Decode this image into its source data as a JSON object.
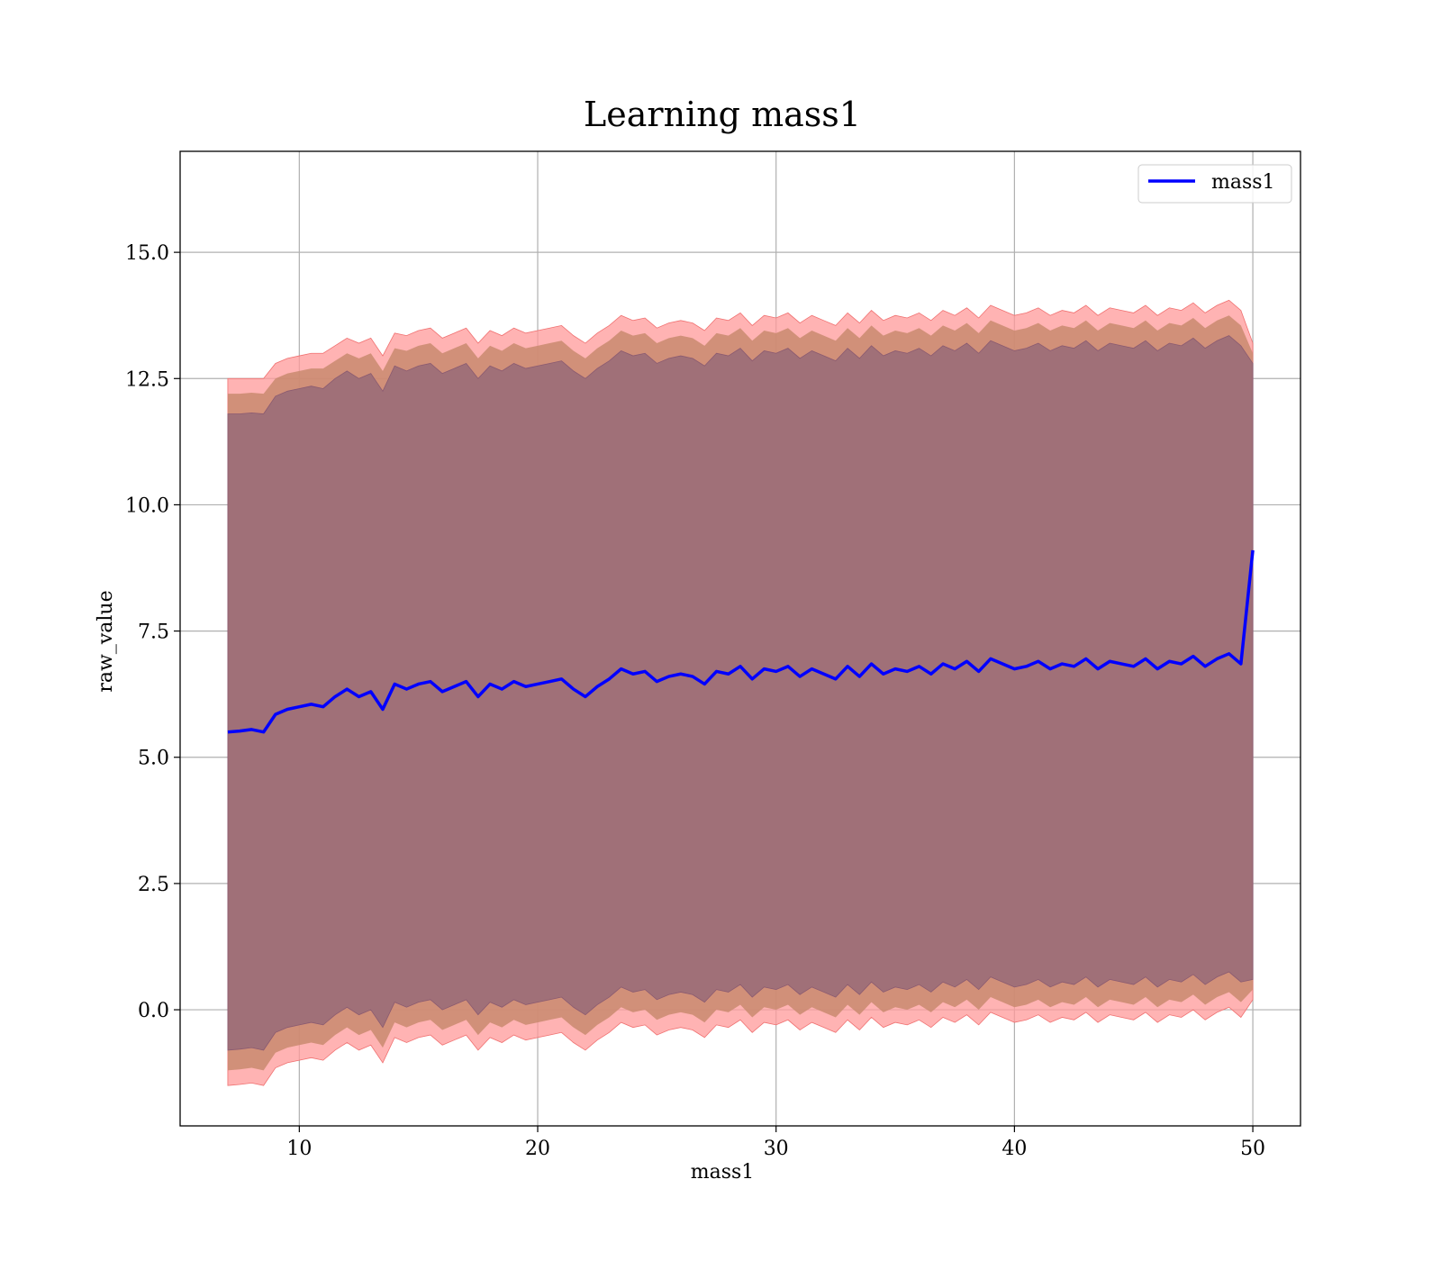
{
  "chart_data": {
    "type": "line",
    "title": "Learning mass1",
    "xlabel": "mass1",
    "ylabel": "raw_value",
    "xlim": [
      5,
      52
    ],
    "ylim": [
      -2.3,
      17
    ],
    "xticks": [
      10,
      20,
      30,
      40,
      50
    ],
    "xtick_labels": [
      "10",
      "20",
      "30",
      "40",
      "50"
    ],
    "yticks": [
      0.0,
      2.5,
      5.0,
      7.5,
      10.0,
      12.5,
      15.0
    ],
    "ytick_labels": [
      "0.0",
      "2.5",
      "5.0",
      "7.5",
      "10.0",
      "12.5",
      "15.0"
    ],
    "grid": true,
    "legend": {
      "position": "top-right",
      "entries": [
        "mass1"
      ]
    },
    "colors": {
      "line": "#0000ff",
      "band_outer": "#ff9a9a",
      "band_middle": "#c98a6e",
      "band_inner": "#a07078"
    },
    "series": [
      {
        "name": "mass1",
        "x": [
          7.0,
          7.5,
          8.0,
          8.5,
          9.0,
          9.5,
          10.0,
          10.5,
          11.0,
          11.5,
          12.0,
          12.5,
          13.0,
          13.5,
          14.0,
          14.5,
          15.0,
          15.5,
          16.0,
          16.5,
          17.0,
          17.5,
          18.0,
          18.5,
          19.0,
          19.5,
          20.0,
          20.5,
          21.0,
          21.5,
          22.0,
          22.5,
          23.0,
          23.5,
          24.0,
          24.5,
          25.0,
          25.5,
          26.0,
          26.5,
          27.0,
          27.5,
          28.0,
          28.5,
          29.0,
          29.5,
          30.0,
          30.5,
          31.0,
          31.5,
          32.0,
          32.5,
          33.0,
          33.5,
          34.0,
          34.5,
          35.0,
          35.5,
          36.0,
          36.5,
          37.0,
          37.5,
          38.0,
          38.5,
          39.0,
          39.5,
          40.0,
          40.5,
          41.0,
          41.5,
          42.0,
          42.5,
          43.0,
          43.5,
          44.0,
          44.5,
          45.0,
          45.5,
          46.0,
          46.5,
          47.0,
          47.5,
          48.0,
          48.5,
          49.0,
          49.5,
          50.0
        ],
        "y": [
          5.5,
          5.52,
          5.55,
          5.5,
          5.85,
          5.95,
          6.0,
          6.05,
          6.0,
          6.2,
          6.35,
          6.2,
          6.3,
          5.95,
          6.45,
          6.35,
          6.45,
          6.5,
          6.3,
          6.4,
          6.5,
          6.2,
          6.45,
          6.35,
          6.5,
          6.4,
          6.45,
          6.5,
          6.55,
          6.35,
          6.2,
          6.4,
          6.55,
          6.75,
          6.65,
          6.7,
          6.5,
          6.6,
          6.65,
          6.6,
          6.45,
          6.7,
          6.65,
          6.8,
          6.55,
          6.75,
          6.7,
          6.8,
          6.6,
          6.75,
          6.65,
          6.55,
          6.8,
          6.6,
          6.85,
          6.65,
          6.75,
          6.7,
          6.8,
          6.65,
          6.85,
          6.75,
          6.9,
          6.7,
          6.95,
          6.85,
          6.75,
          6.8,
          6.9,
          6.75,
          6.85,
          6.8,
          6.95,
          6.75,
          6.9,
          6.85,
          6.8,
          6.95,
          6.75,
          6.9,
          6.85,
          7.0,
          6.8,
          6.95,
          7.05,
          6.85,
          9.1
        ],
        "band_outer_upper": [
          12.5,
          12.5,
          12.5,
          12.5,
          12.8,
          12.9,
          12.95,
          13.0,
          13.0,
          13.15,
          13.3,
          13.2,
          13.3,
          12.95,
          13.4,
          13.35,
          13.45,
          13.5,
          13.3,
          13.4,
          13.5,
          13.2,
          13.45,
          13.35,
          13.5,
          13.4,
          13.45,
          13.5,
          13.55,
          13.35,
          13.2,
          13.4,
          13.55,
          13.75,
          13.65,
          13.7,
          13.5,
          13.6,
          13.65,
          13.6,
          13.45,
          13.7,
          13.65,
          13.8,
          13.55,
          13.75,
          13.7,
          13.8,
          13.6,
          13.75,
          13.65,
          13.55,
          13.8,
          13.6,
          13.85,
          13.65,
          13.75,
          13.7,
          13.8,
          13.65,
          13.85,
          13.75,
          13.9,
          13.7,
          13.95,
          13.85,
          13.75,
          13.8,
          13.9,
          13.75,
          13.85,
          13.8,
          13.95,
          13.75,
          13.9,
          13.85,
          13.8,
          13.95,
          13.75,
          13.9,
          13.85,
          14.0,
          13.8,
          13.95,
          14.05,
          13.85,
          13.2
        ],
        "band_outer_lower": [
          -1.5,
          -1.48,
          -1.45,
          -1.5,
          -1.15,
          -1.05,
          -1.0,
          -0.95,
          -1.0,
          -0.8,
          -0.65,
          -0.8,
          -0.7,
          -1.05,
          -0.55,
          -0.65,
          -0.55,
          -0.5,
          -0.7,
          -0.6,
          -0.5,
          -0.8,
          -0.55,
          -0.65,
          -0.5,
          -0.6,
          -0.55,
          -0.5,
          -0.45,
          -0.65,
          -0.8,
          -0.6,
          -0.45,
          -0.25,
          -0.35,
          -0.3,
          -0.5,
          -0.4,
          -0.35,
          -0.4,
          -0.55,
          -0.3,
          -0.35,
          -0.2,
          -0.45,
          -0.25,
          -0.3,
          -0.2,
          -0.4,
          -0.25,
          -0.35,
          -0.45,
          -0.2,
          -0.4,
          -0.15,
          -0.35,
          -0.25,
          -0.3,
          -0.2,
          -0.35,
          -0.15,
          -0.25,
          -0.1,
          -0.3,
          -0.05,
          -0.15,
          -0.25,
          -0.2,
          -0.1,
          -0.25,
          -0.15,
          -0.2,
          -0.05,
          -0.25,
          -0.1,
          -0.15,
          -0.2,
          -0.05,
          -0.25,
          -0.1,
          -0.15,
          0.0,
          -0.2,
          -0.05,
          0.05,
          -0.15,
          0.2
        ],
        "band_middle_upper": [
          12.2,
          12.2,
          12.22,
          12.2,
          12.5,
          12.6,
          12.65,
          12.7,
          12.7,
          12.85,
          13.0,
          12.9,
          13.0,
          12.65,
          13.1,
          13.05,
          13.15,
          13.2,
          13.0,
          13.1,
          13.2,
          12.9,
          13.15,
          13.05,
          13.2,
          13.1,
          13.15,
          13.2,
          13.25,
          13.05,
          12.9,
          13.1,
          13.25,
          13.45,
          13.35,
          13.4,
          13.2,
          13.3,
          13.35,
          13.3,
          13.15,
          13.4,
          13.35,
          13.5,
          13.25,
          13.45,
          13.4,
          13.5,
          13.3,
          13.45,
          13.35,
          13.25,
          13.5,
          13.3,
          13.55,
          13.35,
          13.45,
          13.4,
          13.5,
          13.35,
          13.55,
          13.45,
          13.6,
          13.4,
          13.65,
          13.55,
          13.45,
          13.5,
          13.6,
          13.45,
          13.55,
          13.5,
          13.65,
          13.45,
          13.6,
          13.55,
          13.5,
          13.65,
          13.45,
          13.6,
          13.55,
          13.7,
          13.5,
          13.65,
          13.75,
          13.55,
          13.0
        ],
        "band_middle_lower": [
          -1.2,
          -1.18,
          -1.15,
          -1.2,
          -0.85,
          -0.75,
          -0.7,
          -0.65,
          -0.7,
          -0.5,
          -0.35,
          -0.5,
          -0.4,
          -0.75,
          -0.25,
          -0.35,
          -0.25,
          -0.2,
          -0.4,
          -0.3,
          -0.2,
          -0.5,
          -0.25,
          -0.35,
          -0.2,
          -0.3,
          -0.25,
          -0.2,
          -0.15,
          -0.35,
          -0.5,
          -0.3,
          -0.15,
          0.05,
          -0.05,
          0.0,
          -0.2,
          -0.1,
          -0.05,
          -0.1,
          -0.25,
          0.0,
          -0.05,
          0.1,
          -0.15,
          0.05,
          0.0,
          0.1,
          -0.1,
          0.05,
          -0.05,
          -0.15,
          0.1,
          -0.1,
          0.15,
          -0.05,
          0.05,
          0.0,
          0.1,
          -0.05,
          0.15,
          0.05,
          0.2,
          0.0,
          0.25,
          0.15,
          0.05,
          0.1,
          0.2,
          0.05,
          0.15,
          0.1,
          0.25,
          0.05,
          0.2,
          0.15,
          0.1,
          0.25,
          0.05,
          0.2,
          0.15,
          0.3,
          0.1,
          0.25,
          0.35,
          0.15,
          0.4
        ],
        "band_inner_upper": [
          11.8,
          11.8,
          11.82,
          11.8,
          12.15,
          12.25,
          12.3,
          12.35,
          12.3,
          12.5,
          12.65,
          12.5,
          12.6,
          12.25,
          12.75,
          12.65,
          12.75,
          12.8,
          12.6,
          12.7,
          12.8,
          12.5,
          12.75,
          12.65,
          12.8,
          12.7,
          12.75,
          12.8,
          12.85,
          12.65,
          12.5,
          12.7,
          12.85,
          13.05,
          12.95,
          13.0,
          12.8,
          12.9,
          12.95,
          12.9,
          12.75,
          13.0,
          12.95,
          13.1,
          12.85,
          13.05,
          13.0,
          13.1,
          12.9,
          13.05,
          12.95,
          12.85,
          13.1,
          12.9,
          13.15,
          12.95,
          13.05,
          13.0,
          13.1,
          12.95,
          13.15,
          13.05,
          13.2,
          13.0,
          13.25,
          13.15,
          13.05,
          13.1,
          13.2,
          13.05,
          13.15,
          13.1,
          13.25,
          13.05,
          13.2,
          13.15,
          13.1,
          13.25,
          13.05,
          13.2,
          13.15,
          13.3,
          13.1,
          13.25,
          13.35,
          13.15,
          12.8
        ],
        "band_inner_lower": [
          -0.8,
          -0.78,
          -0.75,
          -0.8,
          -0.45,
          -0.35,
          -0.3,
          -0.25,
          -0.3,
          -0.1,
          0.05,
          -0.1,
          0.0,
          -0.35,
          0.15,
          0.05,
          0.15,
          0.2,
          0.0,
          0.1,
          0.2,
          -0.1,
          0.15,
          0.05,
          0.2,
          0.1,
          0.15,
          0.2,
          0.25,
          0.05,
          -0.1,
          0.1,
          0.25,
          0.45,
          0.35,
          0.4,
          0.2,
          0.3,
          0.35,
          0.3,
          0.15,
          0.4,
          0.35,
          0.5,
          0.25,
          0.45,
          0.4,
          0.5,
          0.3,
          0.45,
          0.35,
          0.25,
          0.5,
          0.3,
          0.55,
          0.35,
          0.45,
          0.4,
          0.5,
          0.35,
          0.55,
          0.45,
          0.6,
          0.4,
          0.65,
          0.55,
          0.45,
          0.5,
          0.6,
          0.45,
          0.55,
          0.5,
          0.65,
          0.45,
          0.6,
          0.55,
          0.5,
          0.65,
          0.45,
          0.6,
          0.55,
          0.7,
          0.5,
          0.65,
          0.75,
          0.55,
          0.6
        ]
      }
    ]
  }
}
